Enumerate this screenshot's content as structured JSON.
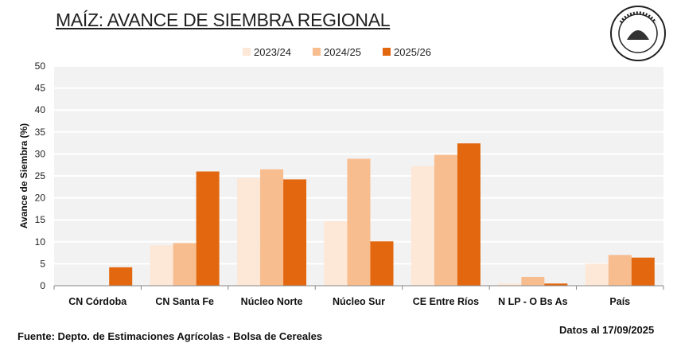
{
  "title": "MAÍZ: AVANCE DE SIEMBRA REGIONAL",
  "source": "Fuente: Depto. de Estimaciones Agrícolas - Bolsa de Cereales",
  "date_note": "Datos al 17/09/2025",
  "logo_text": "Bolsa de Cereales",
  "chart_data": {
    "type": "bar",
    "ylabel": "Avance de Siembra (%)",
    "xlabel": "",
    "ylim": [
      0,
      50
    ],
    "yticks": [
      0,
      5,
      10,
      15,
      20,
      25,
      30,
      35,
      40,
      45,
      50
    ],
    "grid": true,
    "legend_position": "top",
    "categories": [
      "CN Córdoba",
      "CN Santa Fe",
      "Núcleo Norte",
      "Núcleo Sur",
      "CE Entre Ríos",
      "N LP - O Bs As",
      "País"
    ],
    "series": [
      {
        "name": "2023/24",
        "color": "#fde7d6",
        "values": [
          0,
          9.2,
          24.5,
          14.7,
          27.2,
          0.5,
          5.0
        ]
      },
      {
        "name": "2024/25",
        "color": "#f8bd8f",
        "values": [
          0,
          9.7,
          26.5,
          28.9,
          29.8,
          2.0,
          7.0
        ]
      },
      {
        "name": "2025/26",
        "color": "#e2670e",
        "values": [
          4.2,
          26.0,
          24.2,
          10.1,
          32.4,
          0.5,
          6.4
        ]
      }
    ]
  }
}
